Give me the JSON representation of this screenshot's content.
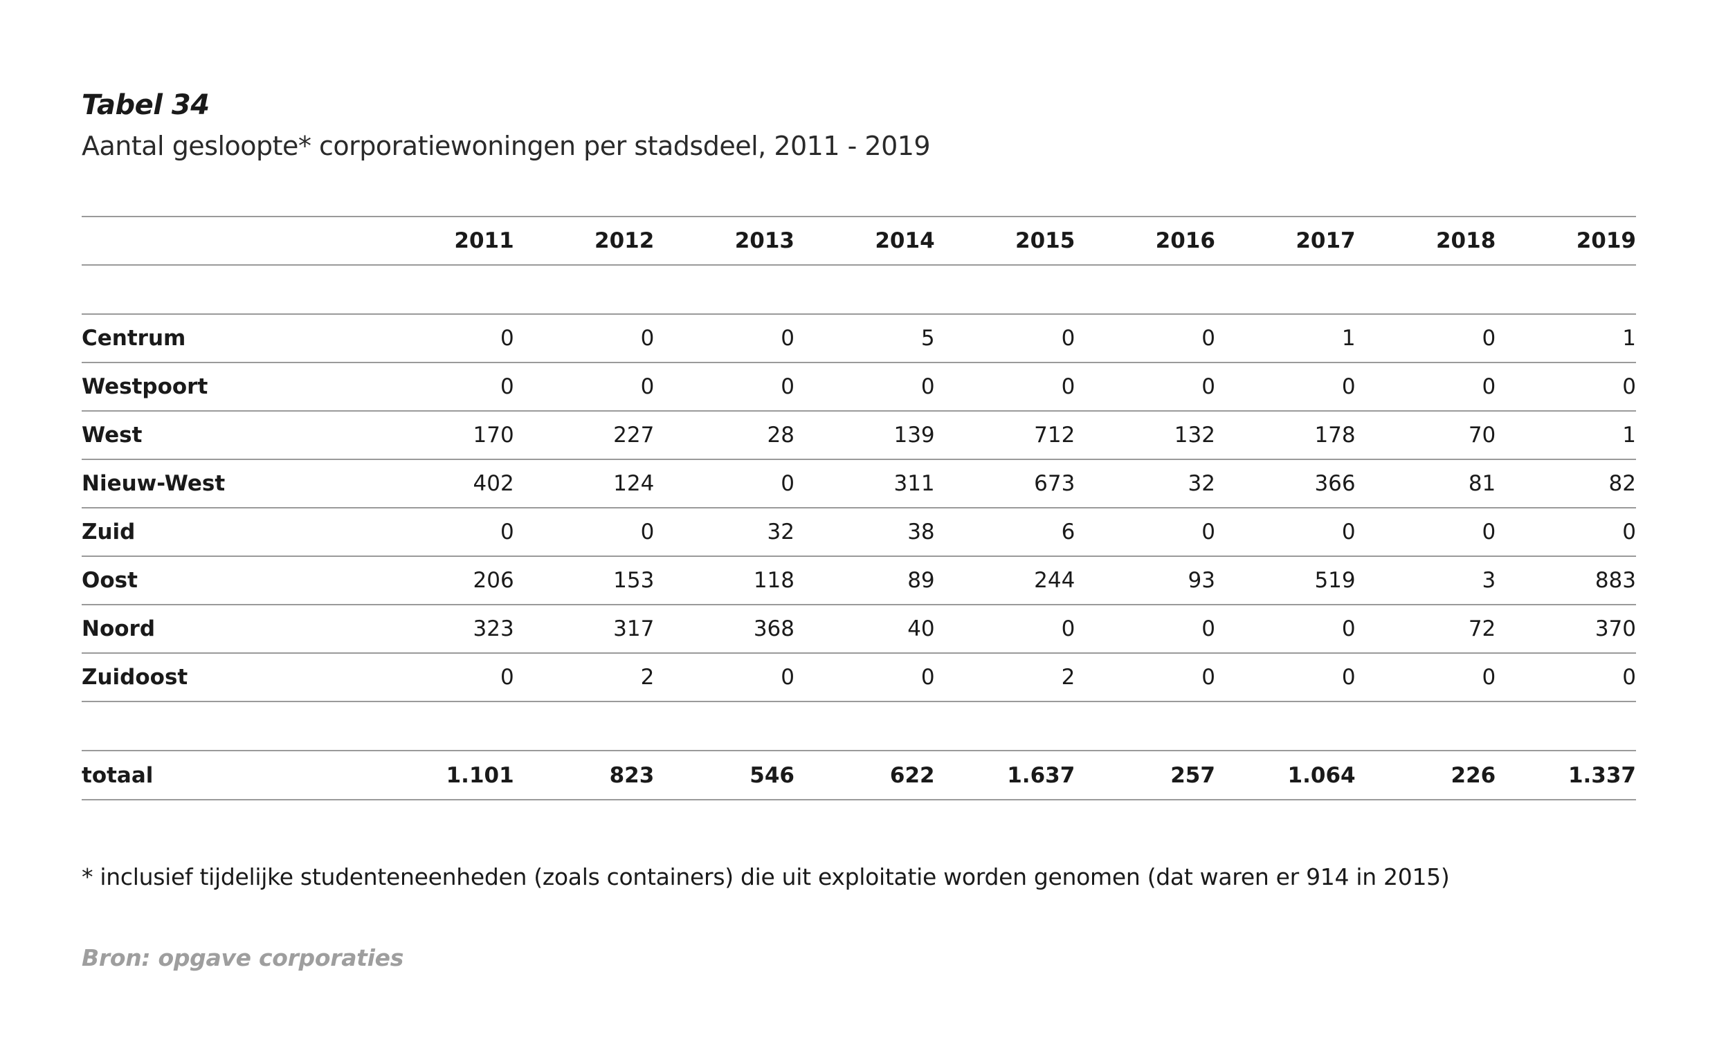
{
  "title": "Tabel 34",
  "subtitle": "Aantal gesloopte* corporatiewoningen per stadsdeel, 2011 - 2019",
  "years": [
    "2011",
    "2012",
    "2013",
    "2014",
    "2015",
    "2016",
    "2017",
    "2018",
    "2019"
  ],
  "rows": [
    {
      "label": "Centrum",
      "values": [
        "0",
        "0",
        "0",
        "5",
        "0",
        "0",
        "1",
        "0",
        "1"
      ]
    },
    {
      "label": "Westpoort",
      "values": [
        "0",
        "0",
        "0",
        "0",
        "0",
        "0",
        "0",
        "0",
        "0"
      ]
    },
    {
      "label": "West",
      "values": [
        "170",
        "227",
        "28",
        "139",
        "712",
        "132",
        "178",
        "70",
        "1"
      ]
    },
    {
      "label": "Nieuw-West",
      "values": [
        "402",
        "124",
        "0",
        "311",
        "673",
        "32",
        "366",
        "81",
        "82"
      ]
    },
    {
      "label": "Zuid",
      "values": [
        "0",
        "0",
        "32",
        "38",
        "6",
        "0",
        "0",
        "0",
        "0"
      ]
    },
    {
      "label": "Oost",
      "values": [
        "206",
        "153",
        "118",
        "89",
        "244",
        "93",
        "519",
        "3",
        "883"
      ]
    },
    {
      "label": "Noord",
      "values": [
        "323",
        "317",
        "368",
        "40",
        "0",
        "0",
        "0",
        "72",
        "370"
      ]
    },
    {
      "label": "Zuidoost",
      "values": [
        "0",
        "2",
        "0",
        "0",
        "2",
        "0",
        "0",
        "0",
        "0"
      ]
    }
  ],
  "total": {
    "label": "totaal",
    "values": [
      "1.101",
      "823",
      "546",
      "622",
      "1.637",
      "257",
      "1.064",
      "226",
      "1.337"
    ]
  },
  "footnote": "* inclusief tijdelijke studenteneenheden (zoals containers) die uit exploitatie worden genomen (dat waren er 914 in 2015)",
  "source": "Bron: opgave corporaties"
}
